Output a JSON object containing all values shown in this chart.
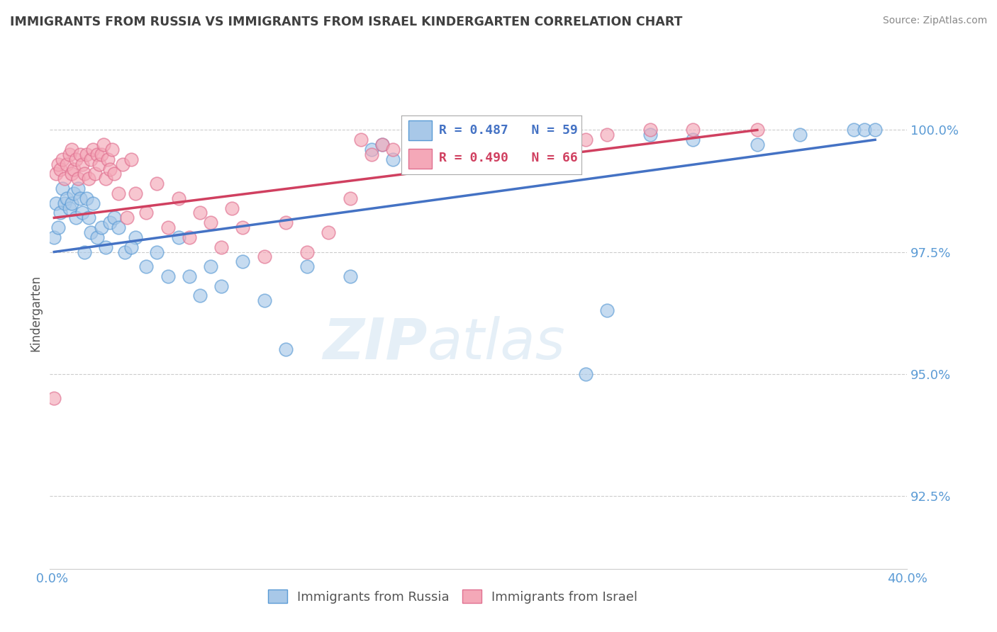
{
  "title": "IMMIGRANTS FROM RUSSIA VS IMMIGRANTS FROM ISRAEL KINDERGARTEN CORRELATION CHART",
  "source": "Source: ZipAtlas.com",
  "ylabel": "Kindergarten",
  "yticks": [
    92.5,
    95.0,
    97.5,
    100.0
  ],
  "ytick_labels": [
    "92.5%",
    "95.0%",
    "97.5%",
    "100.0%"
  ],
  "xlim": [
    0.0,
    40.0
  ],
  "ylim": [
    91.0,
    101.5
  ],
  "watermark_zip": "ZIP",
  "watermark_atlas": "atlas",
  "legend_r_blue": "R = 0.487",
  "legend_n_blue": "N = 59",
  "legend_r_pink": "R = 0.490",
  "legend_n_pink": "N = 66",
  "blue_color": "#a8c8e8",
  "pink_color": "#f4a8b8",
  "blue_edge_color": "#5b9bd5",
  "pink_edge_color": "#e07090",
  "blue_line_color": "#4472c4",
  "pink_line_color": "#d04060",
  "grid_color": "#cccccc",
  "axis_label_color": "#5b9bd5",
  "title_color": "#404040",
  "source_color": "#888888",
  "legend_label_blue": "Immigrants from Russia",
  "legend_label_pink": "Immigrants from Israel",
  "blue_x": [
    0.2,
    0.3,
    0.4,
    0.5,
    0.6,
    0.7,
    0.8,
    0.9,
    1.0,
    1.1,
    1.2,
    1.3,
    1.4,
    1.5,
    1.6,
    1.7,
    1.8,
    1.9,
    2.0,
    2.2,
    2.4,
    2.6,
    2.8,
    3.0,
    3.5,
    4.0,
    4.5,
    5.0,
    5.5,
    6.0,
    7.0,
    7.5,
    8.0,
    9.0,
    10.0,
    11.0,
    12.0,
    14.0,
    15.0,
    15.5,
    16.0,
    17.0,
    18.0,
    19.0,
    20.0,
    22.0,
    24.0,
    25.0,
    26.0,
    28.0,
    30.0,
    33.0,
    35.0,
    37.5,
    38.0,
    38.5,
    3.2,
    3.8,
    6.5
  ],
  "blue_y": [
    97.8,
    98.5,
    98.0,
    98.3,
    98.8,
    98.5,
    98.6,
    98.4,
    98.5,
    98.7,
    98.2,
    98.8,
    98.6,
    98.3,
    97.5,
    98.6,
    98.2,
    97.9,
    98.5,
    97.8,
    98.0,
    97.6,
    98.1,
    98.2,
    97.5,
    97.8,
    97.2,
    97.5,
    97.0,
    97.8,
    96.6,
    97.2,
    96.8,
    97.3,
    96.5,
    95.5,
    97.2,
    97.0,
    99.6,
    99.7,
    99.4,
    99.5,
    99.4,
    99.8,
    99.7,
    99.7,
    99.5,
    95.0,
    96.3,
    99.9,
    99.8,
    99.7,
    99.9,
    100.0,
    100.0,
    100.0,
    98.0,
    97.6,
    97.0
  ],
  "pink_x": [
    0.2,
    0.3,
    0.4,
    0.5,
    0.6,
    0.7,
    0.8,
    0.9,
    1.0,
    1.0,
    1.1,
    1.2,
    1.3,
    1.4,
    1.5,
    1.6,
    1.7,
    1.8,
    1.9,
    2.0,
    2.1,
    2.2,
    2.3,
    2.4,
    2.5,
    2.6,
    2.7,
    2.8,
    2.9,
    3.0,
    3.2,
    3.4,
    3.6,
    3.8,
    4.0,
    4.5,
    5.0,
    5.5,
    6.0,
    6.5,
    7.0,
    7.5,
    8.0,
    8.5,
    9.0,
    10.0,
    11.0,
    12.0,
    13.0,
    14.0,
    14.5,
    15.0,
    15.5,
    16.0,
    17.0,
    18.0,
    19.0,
    20.0,
    21.0,
    22.0,
    24.0,
    25.0,
    26.0,
    28.0,
    30.0,
    33.0
  ],
  "pink_y": [
    94.5,
    99.1,
    99.3,
    99.2,
    99.4,
    99.0,
    99.3,
    99.5,
    99.1,
    99.6,
    99.2,
    99.4,
    99.0,
    99.5,
    99.3,
    99.1,
    99.5,
    99.0,
    99.4,
    99.6,
    99.1,
    99.5,
    99.3,
    99.5,
    99.7,
    99.0,
    99.4,
    99.2,
    99.6,
    99.1,
    98.7,
    99.3,
    98.2,
    99.4,
    98.7,
    98.3,
    98.9,
    98.0,
    98.6,
    97.8,
    98.3,
    98.1,
    97.6,
    98.4,
    98.0,
    97.4,
    98.1,
    97.5,
    97.9,
    98.6,
    99.8,
    99.5,
    99.7,
    99.6,
    99.4,
    99.6,
    99.7,
    99.8,
    99.9,
    100.0,
    99.6,
    99.8,
    99.9,
    100.0,
    100.0,
    100.0
  ],
  "blue_line_x0": 0.2,
  "blue_line_x1": 38.5,
  "blue_line_y0": 97.5,
  "blue_line_y1": 99.8,
  "pink_line_x0": 0.2,
  "pink_line_x1": 33.0,
  "pink_line_y0": 98.2,
  "pink_line_y1": 100.0
}
